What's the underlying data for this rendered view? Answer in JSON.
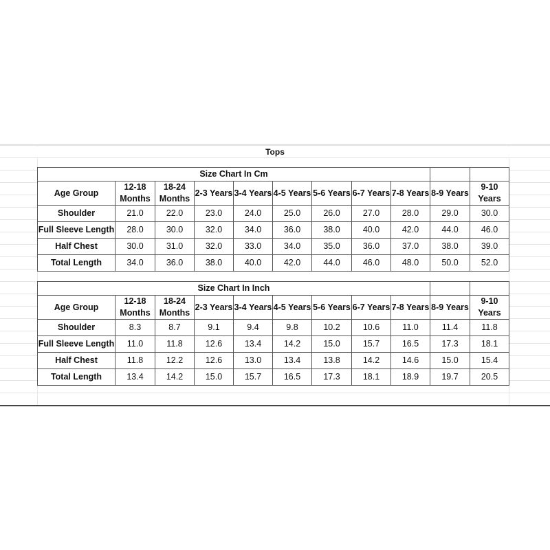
{
  "title": "Tops",
  "columns": [
    "Age Group",
    "12-18 Months",
    "18-24 Months",
    "2-3 Years",
    "3-4 Years",
    "4-5 Years",
    "5-6 Years",
    "6-7 Years",
    "7-8 Years",
    "8-9 Years",
    "9-10 Years"
  ],
  "tables": [
    {
      "caption": "Size Chart In Cm",
      "rows": [
        {
          "label": "Shoulder",
          "values": [
            "21.0",
            "22.0",
            "23.0",
            "24.0",
            "25.0",
            "26.0",
            "27.0",
            "28.0",
            "29.0",
            "30.0"
          ]
        },
        {
          "label": "Full Sleeve Length",
          "values": [
            "28.0",
            "30.0",
            "32.0",
            "34.0",
            "36.0",
            "38.0",
            "40.0",
            "42.0",
            "44.0",
            "46.0"
          ]
        },
        {
          "label": "Half Chest",
          "values": [
            "30.0",
            "31.0",
            "32.0",
            "33.0",
            "34.0",
            "35.0",
            "36.0",
            "37.0",
            "38.0",
            "39.0"
          ]
        },
        {
          "label": "Total Length",
          "values": [
            "34.0",
            "36.0",
            "38.0",
            "40.0",
            "42.0",
            "44.0",
            "46.0",
            "48.0",
            "50.0",
            "52.0"
          ]
        }
      ]
    },
    {
      "caption": "Size Chart In Inch",
      "rows": [
        {
          "label": "Shoulder",
          "values": [
            "8.3",
            "8.7",
            "9.1",
            "9.4",
            "9.8",
            "10.2",
            "10.6",
            "11.0",
            "11.4",
            "11.8"
          ]
        },
        {
          "label": "Full Sleeve Length",
          "values": [
            "11.0",
            "11.8",
            "12.6",
            "13.4",
            "14.2",
            "15.0",
            "15.7",
            "16.5",
            "17.3",
            "18.1"
          ]
        },
        {
          "label": "Half Chest",
          "values": [
            "11.8",
            "12.2",
            "12.6",
            "13.0",
            "13.4",
            "13.8",
            "14.2",
            "14.6",
            "15.0",
            "15.4"
          ]
        },
        {
          "label": "Total Length",
          "values": [
            "13.4",
            "14.2",
            "15.0",
            "15.7",
            "16.5",
            "17.3",
            "18.1",
            "18.9",
            "19.7",
            "20.5"
          ]
        }
      ]
    }
  ]
}
